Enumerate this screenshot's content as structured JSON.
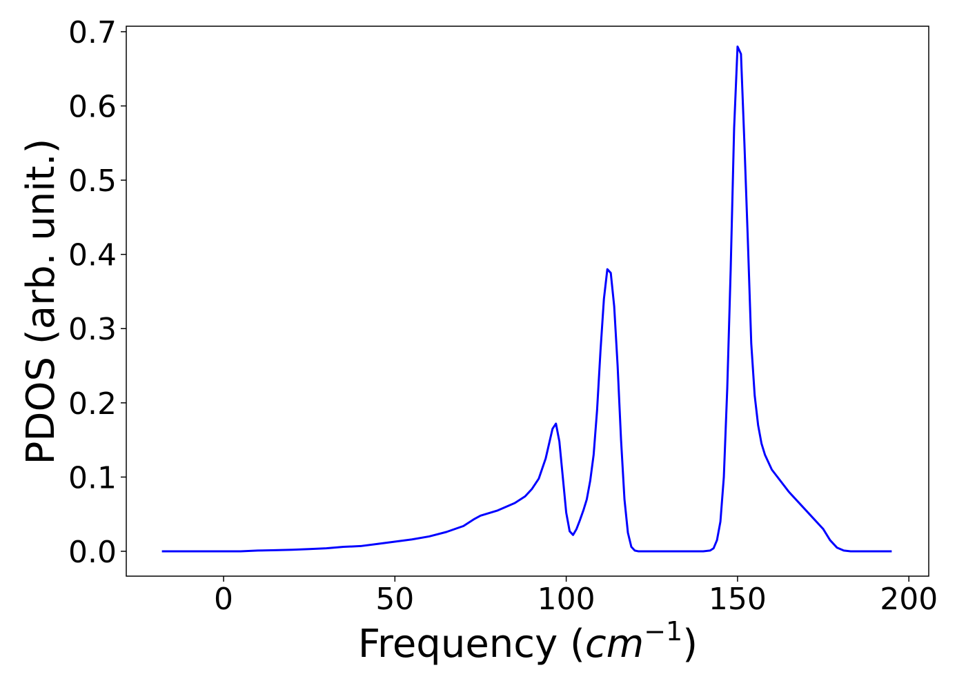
{
  "chart_data": {
    "type": "line",
    "x_label_parts": [
      "Frequency (",
      "cm",
      "−1",
      ")"
    ],
    "y_label": "PDOS (arb. unit.)",
    "x": [
      -18,
      0,
      5,
      10,
      15,
      20,
      25,
      30,
      35,
      40,
      45,
      50,
      55,
      60,
      65,
      70,
      73,
      75,
      80,
      85,
      88,
      90,
      92,
      94,
      95,
      96,
      97,
      98,
      99,
      100,
      101,
      102,
      103,
      104,
      105,
      106,
      107,
      108,
      109,
      110,
      111,
      112,
      113,
      114,
      115,
      116,
      117,
      118,
      119,
      120,
      121,
      140,
      142,
      143,
      144,
      145,
      146,
      147,
      148,
      149,
      150,
      151,
      152,
      153,
      154,
      155,
      156,
      157,
      158,
      160,
      165,
      170,
      172,
      175,
      177,
      179,
      181,
      183,
      195
    ],
    "series": [
      {
        "color": "#0000ff",
        "values": [
          0,
          0,
          0,
          0.001,
          0.0015,
          0.002,
          0.003,
          0.004,
          0.006,
          0.007,
          0.01,
          0.013,
          0.016,
          0.02,
          0.026,
          0.034,
          0.043,
          0.048,
          0.055,
          0.065,
          0.074,
          0.084,
          0.098,
          0.125,
          0.145,
          0.165,
          0.172,
          0.148,
          0.1,
          0.052,
          0.027,
          0.022,
          0.03,
          0.042,
          0.055,
          0.07,
          0.095,
          0.13,
          0.19,
          0.27,
          0.34,
          0.38,
          0.375,
          0.33,
          0.25,
          0.15,
          0.07,
          0.025,
          0.006,
          0.001,
          0,
          0,
          0.001,
          0.004,
          0.015,
          0.04,
          0.1,
          0.22,
          0.38,
          0.57,
          0.68,
          0.67,
          0.55,
          0.42,
          0.28,
          0.21,
          0.17,
          0.145,
          0.13,
          0.11,
          0.08,
          0.055,
          0.045,
          0.03,
          0.015,
          0.005,
          0.001,
          0,
          0
        ]
      }
    ],
    "xlim": [
      -28.4,
      205.8
    ],
    "ylim": [
      -0.0335,
      0.7074
    ],
    "xticks": [
      0,
      50,
      100,
      150,
      200
    ],
    "yticks": [
      {
        "value": 0,
        "label": "0.0"
      },
      0.1,
      0.2,
      0.3,
      0.4,
      0.5,
      0.6,
      0.7
    ],
    "grid": false
  }
}
